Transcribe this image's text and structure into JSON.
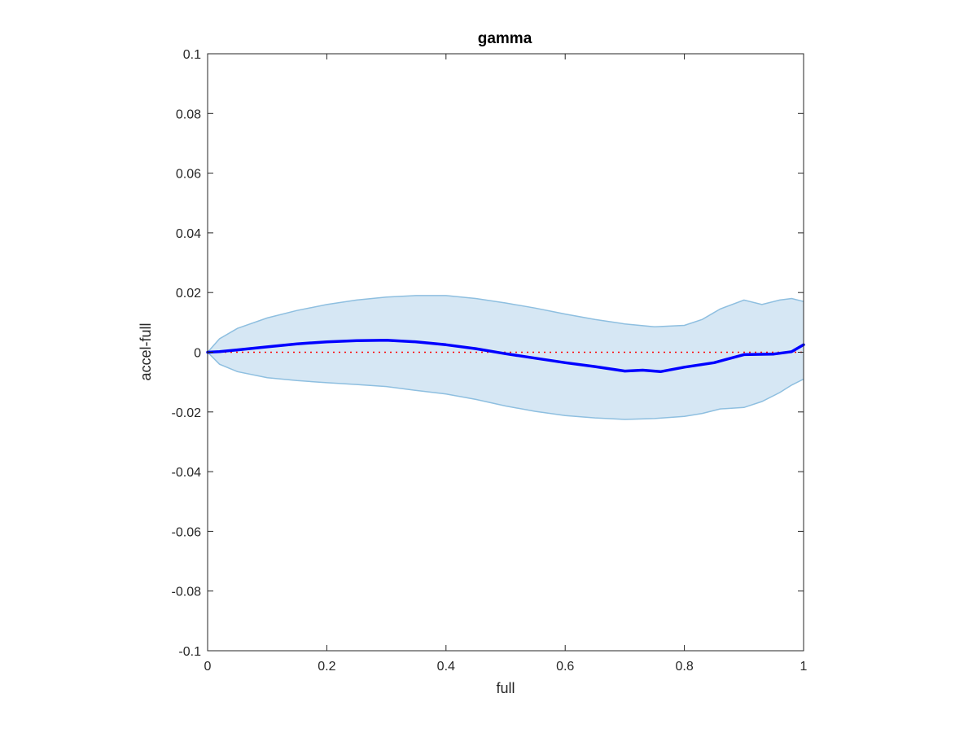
{
  "chart_data": {
    "type": "line",
    "title": "gamma",
    "xlabel": "full",
    "ylabel": "accel-full",
    "xlim": [
      0,
      1
    ],
    "ylim": [
      -0.1,
      0.1
    ],
    "x_ticks": [
      0,
      0.2,
      0.4,
      0.6,
      0.8,
      1
    ],
    "x_tick_labels": [
      "0",
      "0.2",
      "0.4",
      "0.6",
      "0.8",
      "1"
    ],
    "y_ticks": [
      -0.1,
      -0.08,
      -0.06,
      -0.04,
      -0.02,
      0,
      0.02,
      0.04,
      0.06,
      0.08,
      0.1
    ],
    "y_tick_labels": [
      "-0.1",
      "-0.08",
      "-0.06",
      "-0.04",
      "-0.02",
      "0",
      "0.02",
      "0.04",
      "0.06",
      "0.08",
      "0.1"
    ],
    "grid": false,
    "reference_line": {
      "y": 0,
      "style": "dotted",
      "color": "#ff0000"
    },
    "band": {
      "x": [
        0,
        0.02,
        0.05,
        0.1,
        0.15,
        0.2,
        0.25,
        0.3,
        0.35,
        0.4,
        0.45,
        0.5,
        0.55,
        0.6,
        0.65,
        0.7,
        0.75,
        0.8,
        0.83,
        0.86,
        0.9,
        0.93,
        0.96,
        0.98,
        1.0
      ],
      "upper": [
        0,
        0.0045,
        0.008,
        0.0115,
        0.014,
        0.016,
        0.0175,
        0.0185,
        0.019,
        0.019,
        0.018,
        0.0165,
        0.0148,
        0.0128,
        0.011,
        0.0095,
        0.0085,
        0.009,
        0.011,
        0.0145,
        0.0175,
        0.016,
        0.0175,
        0.018,
        0.017
      ],
      "lower": [
        0,
        -0.004,
        -0.0065,
        -0.0085,
        -0.0095,
        -0.0102,
        -0.0108,
        -0.0115,
        -0.0128,
        -0.014,
        -0.0158,
        -0.018,
        -0.0198,
        -0.0212,
        -0.022,
        -0.0225,
        -0.0222,
        -0.0215,
        -0.0205,
        -0.019,
        -0.0185,
        -0.0165,
        -0.0135,
        -0.011,
        -0.009
      ],
      "fill_color": "#d6e7f4",
      "edge_color": "#8ebfe0"
    },
    "series": [
      {
        "x": [
          0,
          0.02,
          0.05,
          0.1,
          0.15,
          0.2,
          0.25,
          0.3,
          0.35,
          0.4,
          0.45,
          0.5,
          0.55,
          0.6,
          0.65,
          0.7,
          0.73,
          0.76,
          0.8,
          0.85,
          0.9,
          0.95,
          0.98,
          1.0
        ],
        "values": [
          0,
          0.0002,
          0.0008,
          0.0018,
          0.0028,
          0.0035,
          0.0039,
          0.004,
          0.0035,
          0.0025,
          0.0012,
          -0.0005,
          -0.002,
          -0.0035,
          -0.0048,
          -0.0063,
          -0.006,
          -0.0065,
          -0.005,
          -0.0035,
          -0.0008,
          -0.0006,
          0.0002,
          0.0025
        ],
        "color": "#0000ff"
      }
    ]
  }
}
